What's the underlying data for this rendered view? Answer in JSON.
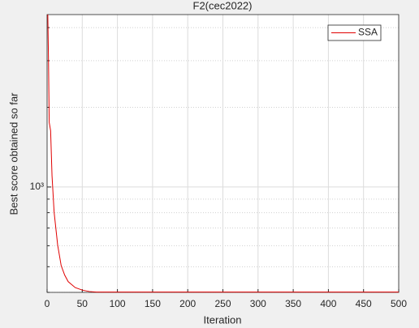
{
  "chart_data": {
    "type": "line",
    "title": "F2(cec2022)",
    "x_label": "Iteration",
    "y_label": "Best score obtained so far",
    "x": [
      1,
      2,
      3,
      5,
      7,
      10,
      15,
      20,
      25,
      30,
      40,
      50,
      60,
      70,
      500
    ],
    "series": [
      {
        "name": "SSA",
        "color": "#e00000",
        "values": [
          4480,
          3000,
          1754,
          1633,
          1104,
          802,
          604,
          505,
          465,
          439,
          417,
          408,
          403,
          401,
          401
        ]
      }
    ],
    "xlim": [
      0,
      500
    ],
    "xticks": [
      0,
      50,
      100,
      150,
      200,
      250,
      300,
      350,
      400,
      450,
      500
    ],
    "ylim": [
      400,
      4480
    ],
    "y_scale": "log",
    "yticks": [
      {
        "value": 1000,
        "label": "10³"
      }
    ],
    "minor_yticks": [
      400,
      500,
      600,
      700,
      800,
      900,
      2000,
      3000,
      4000
    ],
    "grid": true,
    "legend_position": "top-right"
  }
}
